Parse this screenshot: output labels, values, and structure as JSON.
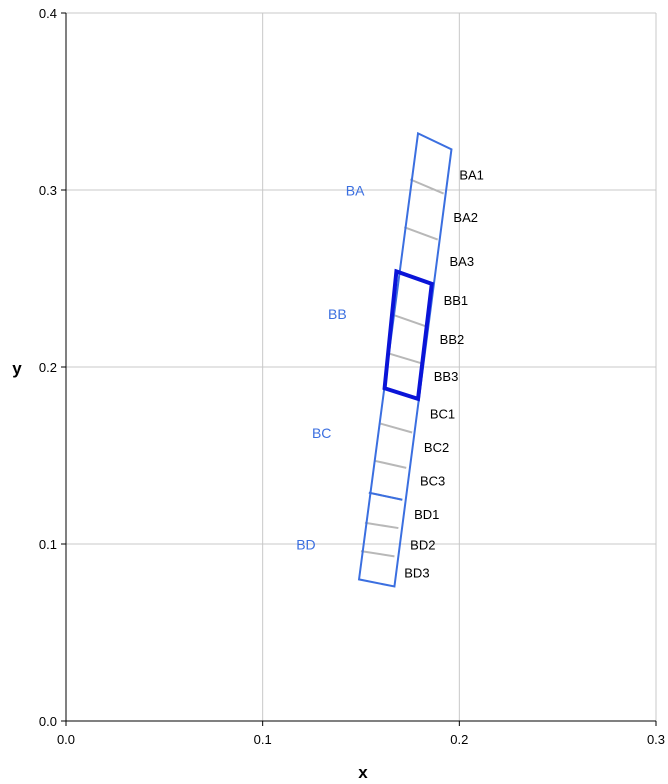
{
  "chart_data": {
    "type": "scatter",
    "xlabel": "x",
    "ylabel": "y",
    "xlim": [
      0.0,
      0.3
    ],
    "ylim": [
      0.0,
      0.4
    ],
    "x_ticks": [
      "0.0",
      "0.1",
      "0.2",
      "0.3"
    ],
    "y_ticks": [
      "0.0",
      "0.1",
      "0.2",
      "0.3",
      "0.4"
    ],
    "grid": true,
    "colors": {
      "outline": "#3B6FE0",
      "highlight": "#0A14D8",
      "divider": "#B8B8B8",
      "grid": "#C8C8C8",
      "zone_label": "#3B6FE0",
      "sub_label": "#000000"
    },
    "outline": [
      [
        0.179,
        0.332
      ],
      [
        0.196,
        0.323
      ],
      [
        0.167,
        0.076
      ],
      [
        0.149,
        0.08
      ]
    ],
    "highlight": [
      [
        0.168,
        0.254
      ],
      [
        0.186,
        0.247
      ],
      [
        0.179,
        0.182
      ],
      [
        0.162,
        0.188
      ]
    ],
    "dividers": [
      [
        [
          0.175,
          0.306
        ],
        [
          0.192,
          0.298
        ]
      ],
      [
        [
          0.172,
          0.279
        ],
        [
          0.189,
          0.272
        ]
      ],
      [
        [
          0.168,
          0.254
        ],
        [
          0.186,
          0.247
        ]
      ],
      [
        [
          0.165,
          0.23
        ],
        [
          0.183,
          0.223
        ]
      ],
      [
        [
          0.163,
          0.208
        ],
        [
          0.181,
          0.202
        ]
      ],
      [
        [
          0.162,
          0.188
        ],
        [
          0.179,
          0.182
        ]
      ],
      [
        [
          0.16,
          0.168
        ],
        [
          0.176,
          0.163
        ]
      ],
      [
        [
          0.157,
          0.147
        ],
        [
          0.173,
          0.143
        ]
      ],
      [
        [
          0.154,
          0.129
        ],
        [
          0.171,
          0.125
        ]
      ],
      [
        [
          0.152,
          0.112
        ],
        [
          0.169,
          0.109
        ]
      ],
      [
        [
          0.15,
          0.096
        ],
        [
          0.167,
          0.093
        ]
      ]
    ],
    "zone_labels": [
      {
        "text": "BA",
        "x": 0.147,
        "y": 0.297
      },
      {
        "text": "BB",
        "x": 0.138,
        "y": 0.227
      },
      {
        "text": "BC",
        "x": 0.13,
        "y": 0.16
      },
      {
        "text": "BD",
        "x": 0.122,
        "y": 0.097
      }
    ],
    "sub_labels": [
      {
        "text": "BA1",
        "x": 0.2,
        "y": 0.306
      },
      {
        "text": "BA2",
        "x": 0.197,
        "y": 0.282
      },
      {
        "text": "BA3",
        "x": 0.195,
        "y": 0.257
      },
      {
        "text": "BB1",
        "x": 0.192,
        "y": 0.235
      },
      {
        "text": "BB2",
        "x": 0.19,
        "y": 0.213
      },
      {
        "text": "BB3",
        "x": 0.187,
        "y": 0.192
      },
      {
        "text": "BC1",
        "x": 0.185,
        "y": 0.171
      },
      {
        "text": "BC2",
        "x": 0.182,
        "y": 0.152
      },
      {
        "text": "BC3",
        "x": 0.18,
        "y": 0.133
      },
      {
        "text": "BD1",
        "x": 0.177,
        "y": 0.114
      },
      {
        "text": "BD2",
        "x": 0.175,
        "y": 0.097
      },
      {
        "text": "BD3",
        "x": 0.172,
        "y": 0.081
      }
    ]
  }
}
